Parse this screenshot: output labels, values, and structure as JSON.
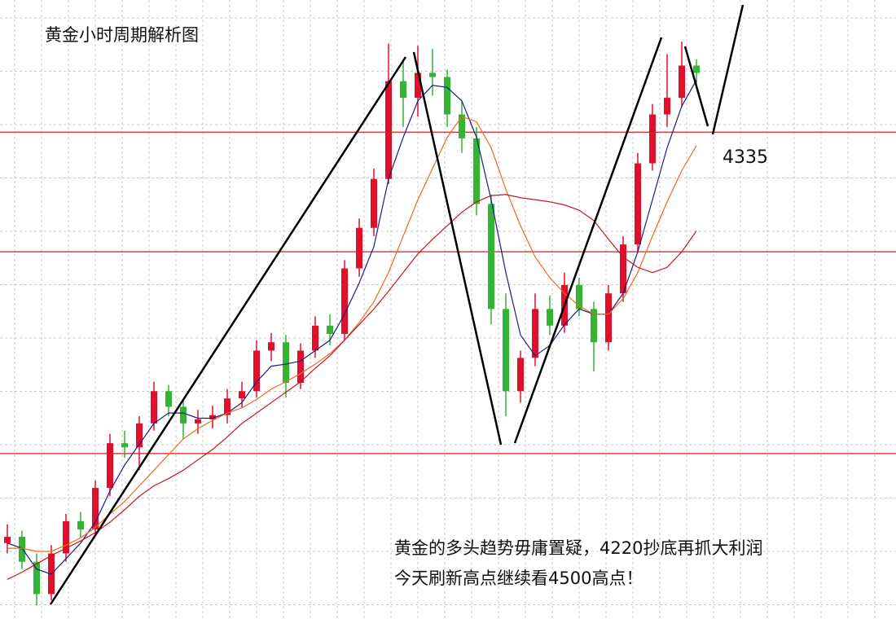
{
  "chart_data": {
    "type": "candlestick",
    "title": "黄金小时周期解析图",
    "up_color": "#e0102a",
    "down_color": "#33b533",
    "ylim": [
      3867,
      4462
    ],
    "candles": [
      [
        3940,
        3958,
        3930,
        3946
      ],
      [
        3946,
        3952,
        3915,
        3922
      ],
      [
        3922,
        3930,
        3880,
        3891
      ],
      [
        3891,
        3938,
        3885,
        3930
      ],
      [
        3930,
        3968,
        3922,
        3961
      ],
      [
        3961,
        3970,
        3945,
        3953
      ],
      [
        3953,
        4000,
        3948,
        3993
      ],
      [
        3993,
        4045,
        3985,
        4036
      ],
      [
        4036,
        4048,
        4022,
        4032
      ],
      [
        4032,
        4062,
        4010,
        4055
      ],
      [
        4055,
        4095,
        4048,
        4086
      ],
      [
        4086,
        4092,
        4062,
        4071
      ],
      [
        4071,
        4078,
        4040,
        4055
      ],
      [
        4055,
        4068,
        4045,
        4059
      ],
      [
        4059,
        4072,
        4050,
        4063
      ],
      [
        4063,
        4088,
        4055,
        4079
      ],
      [
        4079,
        4095,
        4070,
        4086
      ],
      [
        4086,
        4135,
        4080,
        4125
      ],
      [
        4125,
        4142,
        4115,
        4133
      ],
      [
        4133,
        4140,
        4080,
        4094
      ],
      [
        4094,
        4132,
        4088,
        4125
      ],
      [
        4125,
        4158,
        4118,
        4149
      ],
      [
        4149,
        4160,
        4130,
        4141
      ],
      [
        4141,
        4212,
        4135,
        4204
      ],
      [
        4204,
        4252,
        4196,
        4243
      ],
      [
        4243,
        4300,
        4235,
        4290
      ],
      [
        4290,
        4420,
        4285,
        4384
      ],
      [
        4384,
        4405,
        4340,
        4368
      ],
      [
        4368,
        4418,
        4350,
        4392
      ],
      [
        4392,
        4415,
        4370,
        4388
      ],
      [
        4388,
        4395,
        4340,
        4352
      ],
      [
        4352,
        4365,
        4315,
        4329
      ],
      [
        4329,
        4340,
        4255,
        4266
      ],
      [
        4266,
        4275,
        4150,
        4165
      ],
      [
        4165,
        4180,
        4062,
        4086
      ],
      [
        4086,
        4125,
        4075,
        4118
      ],
      [
        4118,
        4180,
        4110,
        4165
      ],
      [
        4165,
        4178,
        4140,
        4149
      ],
      [
        4149,
        4200,
        4142,
        4188
      ],
      [
        4188,
        4195,
        4158,
        4165
      ],
      [
        4165,
        4172,
        4105,
        4133
      ],
      [
        4133,
        4188,
        4125,
        4180
      ],
      [
        4180,
        4235,
        4172,
        4227
      ],
      [
        4227,
        4315,
        4220,
        4305
      ],
      [
        4305,
        4362,
        4298,
        4352
      ],
      [
        4352,
        4410,
        4340,
        4368
      ],
      [
        4368,
        4422,
        4360,
        4399
      ],
      [
        4399,
        4405,
        4380,
        4392
      ]
    ],
    "lines": [
      {
        "color": "#1a1a8c",
        "values": [
          3940,
          3935,
          3915,
          3910,
          3925,
          3940,
          3960,
          3990,
          4015,
          4035,
          4055,
          4065,
          4065,
          4060,
          4060,
          4065,
          4075,
          4095,
          4110,
          4112,
          4115,
          4125,
          4135,
          4160,
          4190,
          4225,
          4290,
          4330,
          4365,
          4380,
          4378,
          4365,
          4330,
          4270,
          4200,
          4140,
          4120,
          4130,
          4150,
          4165,
          4160,
          4160,
          4180,
          4220,
          4270,
          4320,
          4360,
          4385
        ]
      },
      {
        "color": "#f06a1a",
        "values": [
          3935,
          3935,
          3932,
          3932,
          3938,
          3945,
          3955,
          3968,
          3980,
          3995,
          4010,
          4025,
          4040,
          4050,
          4058,
          4065,
          4070,
          4078,
          4088,
          4095,
          4103,
          4112,
          4122,
          4135,
          4152,
          4172,
          4200,
          4235,
          4270,
          4300,
          4330,
          4350,
          4345,
          4320,
          4280,
          4245,
          4215,
          4195,
          4180,
          4168,
          4160,
          4160,
          4175,
          4200,
          4235,
          4268,
          4298,
          4322
        ]
      },
      {
        "color": "#c8141e",
        "values": [
          3905,
          3912,
          3920,
          3928,
          3935,
          3942,
          3950,
          3960,
          3972,
          3985,
          3995,
          4002,
          4010,
          4020,
          4030,
          4042,
          4055,
          4065,
          4075,
          4085,
          4095,
          4108,
          4120,
          4135,
          4150,
          4165,
          4182,
          4200,
          4218,
          4232,
          4245,
          4258,
          4268,
          4274,
          4275,
          4272,
          4270,
          4268,
          4265,
          4260,
          4250,
          4232,
          4215,
          4205,
          4200,
          4205,
          4220,
          4240
        ]
      }
    ],
    "hlines": [
      4335,
      4220,
      4026
    ],
    "hline_color": "#d02020",
    "annotations": [
      "黄金的多头趋势毋庸置疑，4220抄底再抓大利润",
      "今天刷新高点继续看4500高点！"
    ]
  }
}
